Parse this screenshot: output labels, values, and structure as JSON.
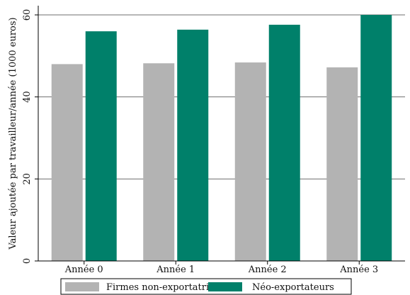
{
  "chart_data": {
    "type": "bar",
    "title": "",
    "xlabel": "",
    "ylabel": "Valeur ajoutée par travailleur/année (1000 euros)",
    "categories": [
      "Année 0",
      "Année 1",
      "Année 2",
      "Année 3"
    ],
    "series": [
      {
        "name": "Firmes non-exportatrices",
        "color": "#b3b3b3",
        "values": [
          48,
          48.2,
          48.4,
          47.2
        ]
      },
      {
        "name": "Néo-exportateurs",
        "color": "#00806a",
        "values": [
          56,
          56.4,
          57.6,
          60
        ]
      }
    ],
    "ylim": [
      0,
      60
    ],
    "yticks": [
      0,
      20,
      40,
      60
    ],
    "grid": true,
    "legend_position": "bottom"
  }
}
